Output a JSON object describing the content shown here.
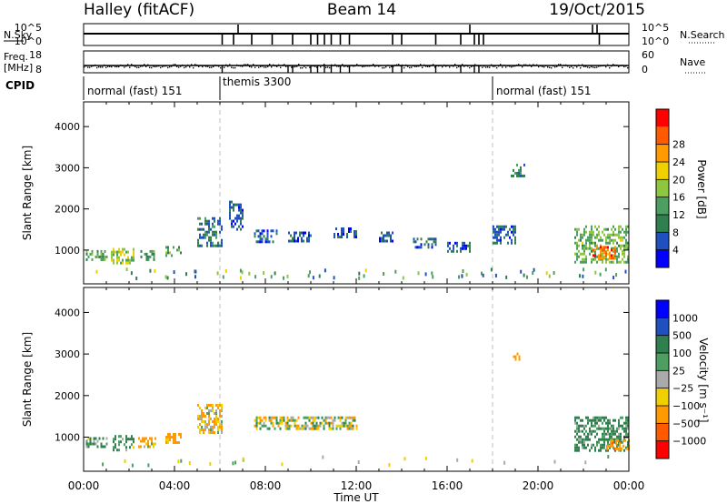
{
  "header": {
    "station": "Halley (fitACF)",
    "beam": "Beam 14",
    "date": "19/Oct/2015"
  },
  "strips": {
    "nsky": {
      "label": "N.Sky",
      "ticks": [
        "10^5",
        "10^0"
      ]
    },
    "nsearch": {
      "label": "N.Search",
      "ticks": [
        "10^5",
        "10^0"
      ]
    },
    "freq": {
      "label": "Freq.",
      "unit": "[MHz]",
      "ticks": [
        "18",
        "8"
      ]
    },
    "nave": {
      "label": "Nave",
      "ticks": [
        "60",
        "0"
      ]
    },
    "cpid": {
      "label": "CPID",
      "segments": [
        "normal (fast) 151",
        "themis 3300",
        "normal (fast) 151"
      ]
    }
  },
  "colors": {
    "frame": "#000000",
    "dash": "#bfbfbf",
    "power_scale": [
      "#0000ff",
      "#2050c0",
      "#2f7f4f",
      "#4c9f60",
      "#8fc63f",
      "#f0d000",
      "#ff9a00",
      "#ff5a00",
      "#ff0000"
    ],
    "velocity_scale": [
      "#0000ff",
      "#2050c0",
      "#2f7f4f",
      "#4c9f60",
      "#aaaaaa",
      "#f0d000",
      "#ff9a00",
      "#ff5a00",
      "#ff0000"
    ]
  },
  "chart_data": [
    {
      "type": "heatmap",
      "title": "",
      "ylabel": "Slant Range [km]",
      "xlabel": "",
      "x_ticks": [
        "00:00",
        "04:00",
        "08:00",
        "12:00",
        "16:00",
        "20:00",
        "00:00"
      ],
      "y_ticks": [
        "1000",
        "2000",
        "3000",
        "4000"
      ],
      "xlim": [
        0,
        24
      ],
      "ylim": [
        180,
        4600
      ],
      "colorbar": {
        "label": "Power [dB]",
        "ticks": [
          "4",
          "8",
          "12",
          "16",
          "20",
          "24",
          "28"
        ],
        "range": [
          0,
          32
        ]
      },
      "cpid_boundaries": [
        6.0,
        18.0
      ],
      "echo_regions": [
        {
          "t": [
            0.1,
            1.0
          ],
          "range": [
            750,
            1000
          ],
          "value": 12
        },
        {
          "t": [
            1.2,
            2.2
          ],
          "range": [
            700,
            1050
          ],
          "value": 16
        },
        {
          "t": [
            2.5,
            3.1
          ],
          "range": [
            800,
            1000
          ],
          "value": 12
        },
        {
          "t": [
            3.6,
            4.3
          ],
          "range": [
            850,
            1100
          ],
          "value": 12
        },
        {
          "t": [
            5.0,
            6.1
          ],
          "range": [
            1100,
            1800
          ],
          "value": 8
        },
        {
          "t": [
            6.4,
            7.0
          ],
          "range": [
            1500,
            2200
          ],
          "value": 6
        },
        {
          "t": [
            7.5,
            8.5
          ],
          "range": [
            1200,
            1500
          ],
          "value": 6
        },
        {
          "t": [
            9.0,
            10.0
          ],
          "range": [
            1250,
            1450
          ],
          "value": 6
        },
        {
          "t": [
            11.0,
            12.0
          ],
          "range": [
            1300,
            1550
          ],
          "value": 6
        },
        {
          "t": [
            13.0,
            13.6
          ],
          "range": [
            1250,
            1450
          ],
          "value": 6
        },
        {
          "t": [
            14.5,
            15.5
          ],
          "range": [
            1100,
            1300
          ],
          "value": 6
        },
        {
          "t": [
            16.0,
            17.0
          ],
          "range": [
            1000,
            1200
          ],
          "value": 6
        },
        {
          "t": [
            18.0,
            19.0
          ],
          "range": [
            1200,
            1600
          ],
          "value": 6
        },
        {
          "t": [
            18.8,
            19.4
          ],
          "range": [
            2800,
            3100
          ],
          "value": 10
        },
        {
          "t": [
            21.6,
            24.0
          ],
          "range": [
            700,
            1600
          ],
          "value": 14
        },
        {
          "t": [
            22.4,
            23.4
          ],
          "range": [
            800,
            1100
          ],
          "value": 26
        }
      ]
    },
    {
      "type": "heatmap",
      "title": "",
      "ylabel": "Slant Range [km]",
      "xlabel": "Time UT",
      "x_ticks": [
        "00:00",
        "04:00",
        "08:00",
        "12:00",
        "16:00",
        "20:00",
        "00:00"
      ],
      "y_ticks": [
        "1000",
        "2000",
        "3000",
        "4000"
      ],
      "xlim": [
        0,
        24
      ],
      "ylim": [
        180,
        4600
      ],
      "colorbar": {
        "label": "Velocity [m s⁻¹]",
        "ticks": [
          "1000",
          "500",
          "100",
          "25",
          "−25",
          "−100",
          "−500",
          "−1000"
        ]
      },
      "cpid_boundaries": [
        6.0,
        18.0
      ],
      "echo_regions": [
        {
          "t": [
            0.1,
            1.0
          ],
          "range": [
            750,
            1000
          ],
          "value": 100
        },
        {
          "t": [
            1.2,
            2.2
          ],
          "range": [
            700,
            1050
          ],
          "value": 100
        },
        {
          "t": [
            2.4,
            3.2
          ],
          "range": [
            800,
            1000
          ],
          "value": -100
        },
        {
          "t": [
            3.6,
            4.3
          ],
          "range": [
            850,
            1100
          ],
          "value": -200
        },
        {
          "t": [
            5.0,
            6.1
          ],
          "range": [
            1100,
            1800
          ],
          "value": -100
        },
        {
          "t": [
            7.5,
            12.0
          ],
          "range": [
            1200,
            1500
          ],
          "value": 0
        },
        {
          "t": [
            18.9,
            19.3
          ],
          "range": [
            2900,
            3100
          ],
          "value": -300
        },
        {
          "t": [
            21.6,
            24.0
          ],
          "range": [
            700,
            1500
          ],
          "value": 150
        },
        {
          "t": [
            23.0,
            24.0
          ],
          "range": [
            750,
            950
          ],
          "value": -400
        }
      ]
    }
  ]
}
